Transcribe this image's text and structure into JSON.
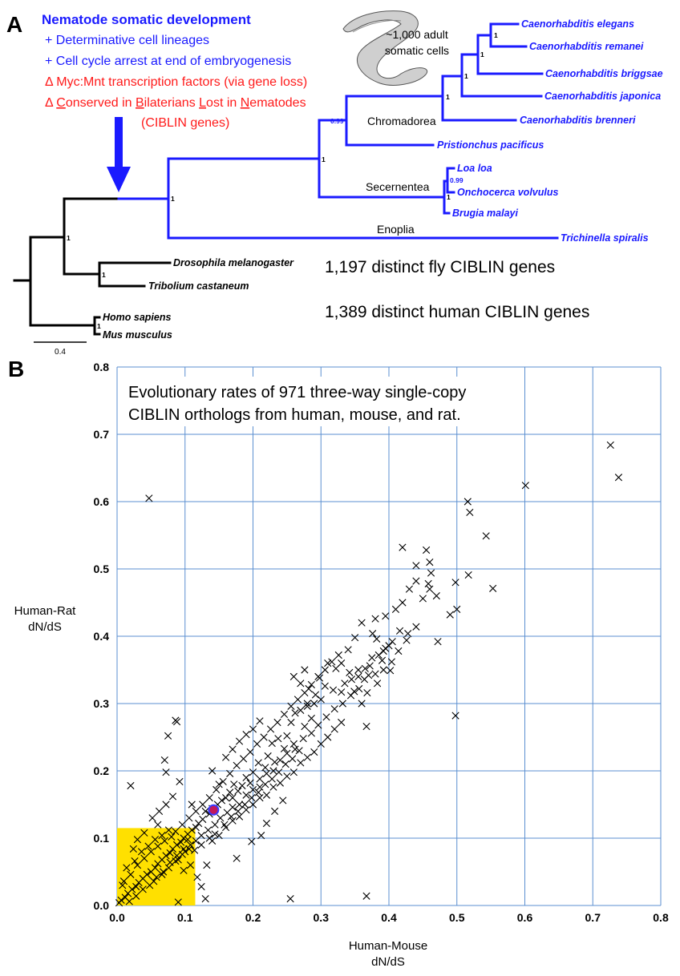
{
  "panel_a": {
    "label": "A",
    "annotation": {
      "heading": "Nematode somatic development",
      "line1": "+ Determinative cell lineages",
      "line2": "+ Cell cycle arrest at end of embryogenesis",
      "line3": "Δ Myc:Mnt transcription factors (via gene loss)",
      "line4_prefix": "Δ ",
      "line4_words": [
        "C",
        "onserved in ",
        "B",
        "ilaterians ",
        "L",
        "ost in ",
        "N",
        "ematodes"
      ],
      "line5": "(CIBLIN genes)"
    },
    "worm_caption_1": "~1,000 adult",
    "worm_caption_2": "somatic cells",
    "taxa": {
      "elegans": "Caenorhabditis elegans",
      "remanei": "Caenorhabditis remanei",
      "briggsae": "Caenorhabditis briggsae",
      "japonica": "Caenorhabditis japonica",
      "brenneri": "Caenorhabditis brenneri",
      "pristionchus": "Pristionchus pacificus",
      "loa": "Loa loa",
      "onchocerca": "Onchocerca volvulus",
      "brugia": "Brugia malayi",
      "trichinella": "Trichinella spiralis",
      "drosophila": "Drosophila melanogaster",
      "tribolium": "Tribolium castaneum",
      "homo": "Homo sapiens",
      "mus": "Mus musculus"
    },
    "clades": {
      "chromadorea": "Chromadorea",
      "secernentea": "Secernentea",
      "enoplia": "Enoplia"
    },
    "support": {
      "s1": "1",
      "s099a": "0.99",
      "s099b": "0.99"
    },
    "fly_note": "1,197 distinct fly CIBLIN genes",
    "human_note": "1,389 distinct human CIBLIN genes",
    "scale_label": "0.4"
  },
  "panel_b": {
    "label": "B",
    "title_line1": "Evolutionary rates of 971 three-way single-copy",
    "title_line2": "CIBLIN orthologs from human, mouse, and rat.",
    "xlabel_line1": "Human-Mouse",
    "xlabel_line2": "dN/dS",
    "ylabel_line1": "Human-Rat",
    "ylabel_line2": "dN/dS"
  },
  "colors": {
    "nematode_branch": "#1a1aff",
    "annotation_red": "#ff1a1a",
    "grid": "#5b8fd0",
    "highlight_box": "#ffe000",
    "highlight_point": "#c2185b"
  },
  "chart_data": {
    "type": "scatter",
    "title": "Evolutionary rates of 971 three-way single-copy CIBLIN orthologs from human, mouse, and rat.",
    "xlabel": "Human-Mouse dN/dS",
    "ylabel": "Human-Rat dN/dS",
    "xlim": [
      0,
      0.8
    ],
    "ylim": [
      0,
      0.8
    ],
    "xticks": [
      "0.0",
      "0.1",
      "0.2",
      "0.3",
      "0.4",
      "0.5",
      "0.6",
      "0.7",
      "0.8"
    ],
    "yticks": [
      "0.0",
      "0.1",
      "0.2",
      "0.3",
      "0.4",
      "0.5",
      "0.6",
      "0.7",
      "0.8"
    ],
    "grid": true,
    "marker": "x",
    "highlight_box": {
      "x": [
        0,
        0.115
      ],
      "y": [
        0,
        0.115
      ]
    },
    "highlight_point": {
      "x": 0.142,
      "y": 0.142
    },
    "points": [
      [
        0.726,
        0.684
      ],
      [
        0.738,
        0.636
      ],
      [
        0.601,
        0.624
      ],
      [
        0.047,
        0.605
      ],
      [
        0.516,
        0.6
      ],
      [
        0.519,
        0.584
      ],
      [
        0.543,
        0.549
      ],
      [
        0.42,
        0.532
      ],
      [
        0.455,
        0.528
      ],
      [
        0.46,
        0.51
      ],
      [
        0.44,
        0.505
      ],
      [
        0.462,
        0.494
      ],
      [
        0.517,
        0.491
      ],
      [
        0.458,
        0.478
      ],
      [
        0.46,
        0.47
      ],
      [
        0.553,
        0.471
      ],
      [
        0.498,
        0.48
      ],
      [
        0.49,
        0.432
      ],
      [
        0.5,
        0.44
      ],
      [
        0.472,
        0.392
      ],
      [
        0.498,
        0.282
      ],
      [
        0.367,
        0.014
      ],
      [
        0.255,
        0.01
      ],
      [
        0.02,
        0.178
      ],
      [
        0.086,
        0.275
      ],
      [
        0.088,
        0.273
      ],
      [
        0.075,
        0.252
      ],
      [
        0.07,
        0.216
      ],
      [
        0.072,
        0.198
      ],
      [
        0.092,
        0.184
      ],
      [
        0.11,
        0.15
      ],
      [
        0.132,
        0.06
      ],
      [
        0.176,
        0.07
      ],
      [
        0.198,
        0.095
      ],
      [
        0.17,
        0.16
      ],
      [
        0.09,
        0.005
      ],
      [
        0.13,
        0.01
      ],
      [
        0.42,
        0.45
      ],
      [
        0.41,
        0.44
      ],
      [
        0.395,
        0.43
      ],
      [
        0.38,
        0.426
      ],
      [
        0.36,
        0.42
      ],
      [
        0.376,
        0.404
      ],
      [
        0.35,
        0.398
      ],
      [
        0.34,
        0.38
      ],
      [
        0.382,
        0.396
      ],
      [
        0.33,
        0.36
      ],
      [
        0.31,
        0.36
      ],
      [
        0.298,
        0.338
      ],
      [
        0.322,
        0.352
      ],
      [
        0.342,
        0.346
      ],
      [
        0.355,
        0.35
      ],
      [
        0.364,
        0.336
      ],
      [
        0.37,
        0.342
      ],
      [
        0.383,
        0.33
      ],
      [
        0.402,
        0.349
      ],
      [
        0.392,
        0.378
      ],
      [
        0.372,
        0.356
      ],
      [
        0.36,
        0.3
      ],
      [
        0.367,
        0.266
      ],
      [
        0.349,
        0.318
      ],
      [
        0.33,
        0.317
      ],
      [
        0.318,
        0.32
      ],
      [
        0.306,
        0.326
      ],
      [
        0.292,
        0.313
      ],
      [
        0.28,
        0.3
      ],
      [
        0.286,
        0.278
      ],
      [
        0.276,
        0.266
      ],
      [
        0.262,
        0.286
      ],
      [
        0.256,
        0.272
      ],
      [
        0.25,
        0.252
      ],
      [
        0.26,
        0.24
      ],
      [
        0.246,
        0.233
      ],
      [
        0.237,
        0.248
      ],
      [
        0.228,
        0.241
      ],
      [
        0.222,
        0.222
      ],
      [
        0.232,
        0.213
      ],
      [
        0.218,
        0.205
      ],
      [
        0.208,
        0.212
      ],
      [
        0.2,
        0.198
      ],
      [
        0.21,
        0.188
      ],
      [
        0.196,
        0.182
      ],
      [
        0.19,
        0.19
      ],
      [
        0.184,
        0.178
      ],
      [
        0.178,
        0.17
      ],
      [
        0.172,
        0.18
      ],
      [
        0.166,
        0.168
      ],
      [
        0.16,
        0.16
      ],
      [
        0.154,
        0.156
      ],
      [
        0.148,
        0.15
      ],
      [
        0.14,
        0.144
      ],
      [
        0.136,
        0.136
      ],
      [
        0.13,
        0.14
      ],
      [
        0.126,
        0.128
      ],
      [
        0.12,
        0.122
      ],
      [
        0.116,
        0.116
      ],
      [
        0.11,
        0.112
      ],
      [
        0.104,
        0.106
      ],
      [
        0.098,
        0.1
      ],
      [
        0.094,
        0.094
      ],
      [
        0.088,
        0.09
      ],
      [
        0.082,
        0.084
      ],
      [
        0.078,
        0.078
      ],
      [
        0.072,
        0.074
      ],
      [
        0.066,
        0.068
      ],
      [
        0.06,
        0.062
      ],
      [
        0.056,
        0.056
      ],
      [
        0.05,
        0.05
      ],
      [
        0.044,
        0.046
      ],
      [
        0.038,
        0.04
      ],
      [
        0.032,
        0.034
      ],
      [
        0.028,
        0.028
      ],
      [
        0.022,
        0.024
      ],
      [
        0.016,
        0.018
      ],
      [
        0.012,
        0.012
      ],
      [
        0.006,
        0.008
      ],
      [
        0.003,
        0.004
      ],
      [
        0.09,
        0.068
      ],
      [
        0.1,
        0.08
      ],
      [
        0.108,
        0.09
      ],
      [
        0.08,
        0.102
      ],
      [
        0.07,
        0.096
      ],
      [
        0.06,
        0.088
      ],
      [
        0.05,
        0.08
      ],
      [
        0.04,
        0.07
      ],
      [
        0.03,
        0.06
      ],
      [
        0.02,
        0.046
      ],
      [
        0.01,
        0.036
      ],
      [
        0.054,
        0.036
      ],
      [
        0.066,
        0.046
      ],
      [
        0.076,
        0.056
      ],
      [
        0.086,
        0.066
      ],
      [
        0.096,
        0.076
      ],
      [
        0.106,
        0.084
      ],
      [
        0.116,
        0.096
      ],
      [
        0.124,
        0.104
      ],
      [
        0.134,
        0.112
      ],
      [
        0.144,
        0.12
      ],
      [
        0.152,
        0.13
      ],
      [
        0.162,
        0.138
      ],
      [
        0.17,
        0.146
      ],
      [
        0.18,
        0.15
      ],
      [
        0.19,
        0.164
      ],
      [
        0.2,
        0.172
      ],
      [
        0.21,
        0.176
      ],
      [
        0.22,
        0.196
      ],
      [
        0.23,
        0.2
      ],
      [
        0.24,
        0.216
      ],
      [
        0.25,
        0.226
      ],
      [
        0.262,
        0.232
      ],
      [
        0.274,
        0.248
      ],
      [
        0.286,
        0.256
      ],
      [
        0.296,
        0.268
      ],
      [
        0.308,
        0.28
      ],
      [
        0.32,
        0.292
      ],
      [
        0.332,
        0.3
      ],
      [
        0.344,
        0.312
      ],
      [
        0.356,
        0.322
      ],
      [
        0.368,
        0.316
      ],
      [
        0.38,
        0.344
      ],
      [
        0.392,
        0.35
      ],
      [
        0.404,
        0.362
      ],
      [
        0.416,
        0.408
      ],
      [
        0.428,
        0.404
      ],
      [
        0.44,
        0.414
      ],
      [
        0.106,
        0.13
      ],
      [
        0.116,
        0.14
      ],
      [
        0.126,
        0.15
      ],
      [
        0.136,
        0.16
      ],
      [
        0.146,
        0.172
      ],
      [
        0.156,
        0.184
      ],
      [
        0.166,
        0.196
      ],
      [
        0.176,
        0.208
      ],
      [
        0.186,
        0.218
      ],
      [
        0.196,
        0.228
      ],
      [
        0.206,
        0.24
      ],
      [
        0.216,
        0.25
      ],
      [
        0.226,
        0.262
      ],
      [
        0.236,
        0.272
      ],
      [
        0.246,
        0.284
      ],
      [
        0.256,
        0.296
      ],
      [
        0.266,
        0.306
      ],
      [
        0.276,
        0.316
      ],
      [
        0.286,
        0.328
      ],
      [
        0.296,
        0.34
      ],
      [
        0.306,
        0.35
      ],
      [
        0.316,
        0.362
      ],
      [
        0.326,
        0.372
      ],
      [
        0.096,
        0.12
      ],
      [
        0.086,
        0.11
      ],
      [
        0.076,
        0.112
      ],
      [
        0.066,
        0.104
      ],
      [
        0.056,
        0.098
      ],
      [
        0.046,
        0.088
      ],
      [
        0.036,
        0.08
      ],
      [
        0.026,
        0.066
      ],
      [
        0.14,
        0.096
      ],
      [
        0.15,
        0.104
      ],
      [
        0.16,
        0.116
      ],
      [
        0.17,
        0.126
      ],
      [
        0.18,
        0.132
      ],
      [
        0.19,
        0.142
      ],
      [
        0.2,
        0.15
      ],
      [
        0.21,
        0.16
      ],
      [
        0.22,
        0.164
      ],
      [
        0.23,
        0.176
      ],
      [
        0.24,
        0.182
      ],
      [
        0.25,
        0.192
      ],
      [
        0.26,
        0.198
      ],
      [
        0.27,
        0.212
      ],
      [
        0.28,
        0.22
      ],
      [
        0.29,
        0.228
      ],
      [
        0.3,
        0.24
      ],
      [
        0.31,
        0.25
      ],
      [
        0.32,
        0.262
      ],
      [
        0.33,
        0.272
      ],
      [
        0.114,
        0.082
      ],
      [
        0.124,
        0.09
      ],
      [
        0.136,
        0.1
      ],
      [
        0.144,
        0.106
      ],
      [
        0.158,
        0.12
      ],
      [
        0.168,
        0.132
      ],
      [
        0.178,
        0.14
      ],
      [
        0.188,
        0.15
      ],
      [
        0.198,
        0.16
      ],
      [
        0.208,
        0.168
      ],
      [
        0.218,
        0.18
      ],
      [
        0.228,
        0.188
      ],
      [
        0.238,
        0.198
      ],
      [
        0.248,
        0.21
      ],
      [
        0.258,
        0.218
      ],
      [
        0.268,
        0.23
      ],
      [
        0.212,
        0.104
      ],
      [
        0.22,
        0.122
      ],
      [
        0.232,
        0.14
      ],
      [
        0.244,
        0.156
      ],
      [
        0.118,
        0.042
      ],
      [
        0.124,
        0.028
      ],
      [
        0.108,
        0.06
      ],
      [
        0.098,
        0.052
      ],
      [
        0.15,
        0.18
      ],
      [
        0.14,
        0.2
      ],
      [
        0.16,
        0.22
      ],
      [
        0.17,
        0.232
      ],
      [
        0.18,
        0.244
      ],
      [
        0.19,
        0.254
      ],
      [
        0.2,
        0.262
      ],
      [
        0.21,
        0.274
      ],
      [
        0.052,
        0.13
      ],
      [
        0.062,
        0.14
      ],
      [
        0.072,
        0.15
      ],
      [
        0.082,
        0.162
      ],
      [
        0.03,
        0.098
      ],
      [
        0.04,
        0.108
      ],
      [
        0.06,
        0.12
      ],
      [
        0.024,
        0.084
      ],
      [
        0.014,
        0.056
      ],
      [
        0.008,
        0.03
      ],
      [
        0.018,
        0.006
      ],
      [
        0.028,
        0.014
      ],
      [
        0.038,
        0.024
      ],
      [
        0.048,
        0.03
      ],
      [
        0.058,
        0.042
      ],
      [
        0.068,
        0.05
      ],
      [
        0.078,
        0.064
      ],
      [
        0.088,
        0.074
      ],
      [
        0.098,
        0.084
      ],
      [
        0.104,
        0.098
      ],
      [
        0.44,
        0.482
      ],
      [
        0.43,
        0.47
      ],
      [
        0.45,
        0.456
      ],
      [
        0.47,
        0.46
      ],
      [
        0.4,
        0.386
      ],
      [
        0.39,
        0.364
      ],
      [
        0.414,
        0.378
      ],
      [
        0.426,
        0.394
      ],
      [
        0.335,
        0.33
      ],
      [
        0.345,
        0.336
      ],
      [
        0.355,
        0.34
      ],
      [
        0.365,
        0.352
      ],
      [
        0.375,
        0.368
      ],
      [
        0.385,
        0.372
      ],
      [
        0.395,
        0.382
      ],
      [
        0.405,
        0.392
      ],
      [
        0.27,
        0.29
      ],
      [
        0.28,
        0.296
      ],
      [
        0.29,
        0.3
      ],
      [
        0.3,
        0.306
      ],
      [
        0.282,
        0.322
      ],
      [
        0.27,
        0.33
      ],
      [
        0.26,
        0.34
      ],
      [
        0.276,
        0.35
      ]
    ]
  }
}
